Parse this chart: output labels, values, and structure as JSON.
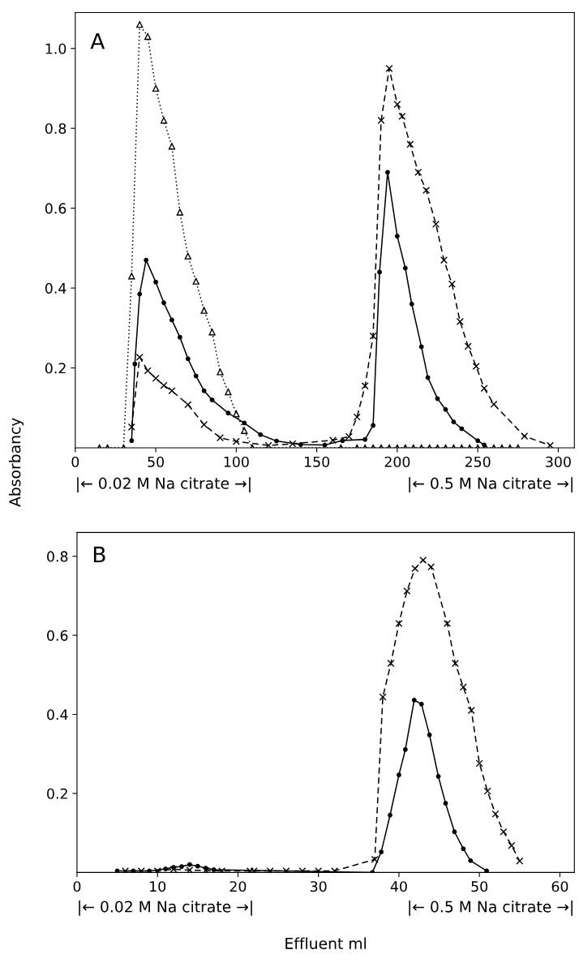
{
  "chart_data": [
    {
      "type": "line",
      "ylabel": "Absorbancy",
      "xlim": [
        0,
        310
      ],
      "ylim": [
        0,
        1.09
      ],
      "xticks": [
        0,
        50,
        100,
        150,
        200,
        250,
        300
      ],
      "yticks": [
        0.2,
        0.4,
        0.6,
        0.8,
        {
          "value": 1.0,
          "label": "1.0"
        }
      ],
      "grid": false,
      "legend": false,
      "annotations": [
        "A",
        "|← 0.02 M Na citrate →|",
        "|← 0.5 M Na citrate →|"
      ],
      "series": [
        {
          "color": "#000000",
          "marker": "triangle",
          "line_style": "dotted",
          "x": [
            15,
            20,
            30,
            35,
            40,
            45,
            50,
            55,
            60,
            65,
            70,
            75,
            80,
            85,
            90,
            95,
            100,
            105,
            110,
            165,
            175,
            180,
            185,
            190,
            195,
            200,
            205,
            210,
            215,
            220,
            225,
            230,
            235,
            240,
            245,
            250,
            255,
            260,
            265,
            270,
            275
          ],
          "values": [
            0,
            0,
            0,
            0.43,
            1.06,
            1.03,
            0.9,
            0.82,
            0.755,
            0.59,
            0.48,
            0.417,
            0.344,
            0.29,
            0.19,
            0.14,
            0.085,
            0.043,
            0,
            0,
            0,
            0,
            0,
            0,
            0,
            0,
            0,
            0,
            0,
            0,
            0,
            0,
            0,
            0,
            0,
            0,
            0,
            0,
            0,
            0,
            0
          ]
        },
        {
          "color": "#000000",
          "marker": "circle",
          "line_style": "solid",
          "x": [
            35,
            37,
            40,
            44,
            50,
            55,
            60,
            65,
            70,
            75,
            80,
            85,
            95,
            105,
            115,
            125,
            140,
            155,
            166,
            180,
            185,
            189,
            194,
            200,
            205,
            209,
            215,
            219,
            225,
            230,
            235,
            240,
            250,
            254
          ],
          "values": [
            0.018,
            0.21,
            0.385,
            0.47,
            0.415,
            0.363,
            0.32,
            0.277,
            0.223,
            0.18,
            0.143,
            0.12,
            0.087,
            0.062,
            0.033,
            0.017,
            0.008,
            0.007,
            0.018,
            0.021,
            0.056,
            0.44,
            0.69,
            0.53,
            0.45,
            0.36,
            0.253,
            0.176,
            0.123,
            0.096,
            0.065,
            0.048,
            0.018,
            0.007
          ]
        },
        {
          "color": "#000000",
          "marker": "cross",
          "line_style": "dashed",
          "x": [
            35,
            40,
            45,
            50,
            55,
            60,
            70,
            80,
            90,
            100,
            120,
            135,
            160,
            170,
            175,
            180,
            185,
            190,
            195,
            200,
            203,
            208,
            213,
            218,
            224,
            229,
            234,
            239,
            244,
            249,
            254,
            260,
            279,
            295
          ],
          "values": [
            0.052,
            0.227,
            0.193,
            0.174,
            0.156,
            0.143,
            0.108,
            0.058,
            0.025,
            0.016,
            0.006,
            0.01,
            0.019,
            0.028,
            0.077,
            0.155,
            0.28,
            0.82,
            0.95,
            0.86,
            0.83,
            0.76,
            0.69,
            0.645,
            0.56,
            0.47,
            0.41,
            0.316,
            0.254,
            0.204,
            0.149,
            0.109,
            0.029,
            0.006
          ]
        }
      ]
    },
    {
      "type": "line",
      "xlabel": "Effluent ml",
      "xlim": [
        0,
        61.8
      ],
      "ylim": [
        0,
        0.86
      ],
      "xticks": [
        0,
        10,
        20,
        30,
        40,
        50,
        60
      ],
      "yticks": [
        0.2,
        0.4,
        0.6,
        0.8
      ],
      "grid": false,
      "legend": false,
      "annotations": [
        "B",
        "|← 0.02 M Na citrate →|",
        "|← 0.5 M Na citrate →|"
      ],
      "series": [
        {
          "color": "#000000",
          "marker": "circle",
          "line_style": "solid",
          "x": [
            5,
            7,
            9,
            11,
            12,
            13,
            14,
            15,
            16,
            17,
            36.7,
            37.8,
            38.9,
            40,
            40.8,
            41.9,
            42.8,
            43.8,
            44.9,
            45.8,
            46.9,
            48,
            48.9,
            50.9
          ],
          "values": [
            0.004,
            0.004,
            0.004,
            0.009,
            0.013,
            0.015,
            0.02,
            0.016,
            0.011,
            0.007,
            0,
            0.052,
            0.145,
            0.247,
            0.311,
            0.436,
            0.426,
            0.348,
            0.243,
            0.175,
            0.103,
            0.06,
            0.03,
            0.004
          ]
        },
        {
          "color": "#000000",
          "marker": "cross",
          "line_style": "dashed",
          "x": [
            6,
            8,
            10,
            12,
            14,
            16,
            18,
            21.5,
            22,
            24,
            26,
            28,
            30,
            32,
            37,
            38,
            39,
            40,
            41,
            42,
            43,
            44,
            46,
            47,
            48,
            49,
            50,
            51,
            52,
            53,
            54,
            55
          ],
          "values": [
            0.004,
            0.004,
            0.004,
            0.008,
            0.006,
            0.005,
            0.004,
            0.004,
            0.004,
            0.004,
            0.004,
            0.004,
            0.004,
            0.004,
            0.033,
            0.444,
            0.529,
            0.63,
            0.712,
            0.769,
            0.79,
            0.773,
            0.63,
            0.529,
            0.469,
            0.41,
            0.276,
            0.206,
            0.148,
            0.103,
            0.068,
            0.029
          ]
        }
      ]
    }
  ]
}
